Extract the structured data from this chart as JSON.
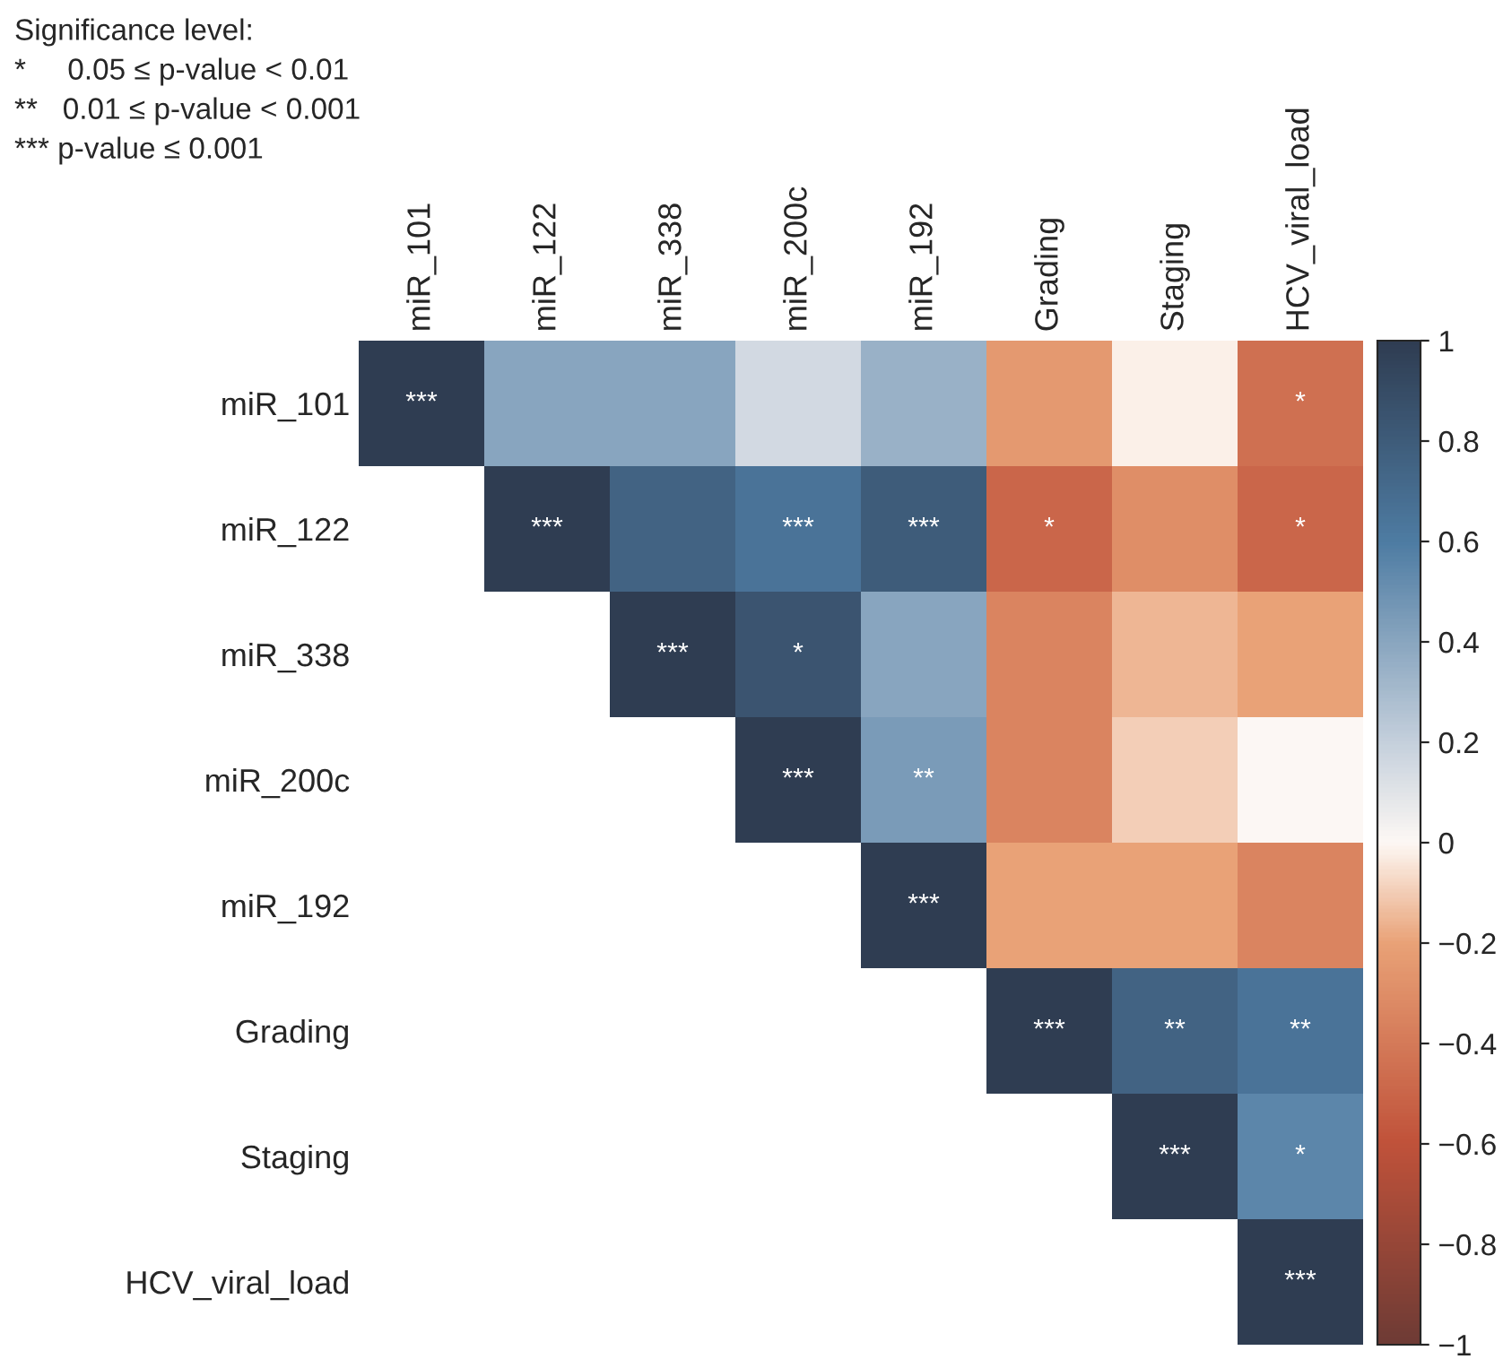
{
  "chart_data": {
    "type": "heatmap",
    "categories": [
      "miR_101",
      "miR_122",
      "miR_338",
      "miR_200c",
      "miR_192",
      "Grading",
      "Staging",
      "HCV_viral_load"
    ],
    "y_categories": [
      "miR_101",
      "miR_122",
      "miR_338",
      "miR_200c",
      "miR_192",
      "Grading",
      "Staging",
      "HCV_viral_load"
    ],
    "cells": [
      [
        1,
        0.4,
        0.4,
        0.15,
        0.35,
        -0.25,
        -0.02,
        -0.45
      ],
      [
        null,
        1,
        0.75,
        0.65,
        0.8,
        -0.5,
        -0.3,
        -0.5
      ],
      [
        null,
        null,
        1,
        0.85,
        0.4,
        -0.35,
        -0.15,
        -0.2
      ],
      [
        null,
        null,
        null,
        1,
        0.45,
        -0.35,
        -0.1,
        0.0
      ],
      [
        null,
        null,
        null,
        null,
        1,
        -0.2,
        -0.2,
        -0.35
      ],
      [
        null,
        null,
        null,
        null,
        null,
        1,
        0.75,
        0.65
      ],
      [
        null,
        null,
        null,
        null,
        null,
        null,
        1,
        0.55
      ],
      [
        null,
        null,
        null,
        null,
        null,
        null,
        null,
        1
      ]
    ],
    "cell_labels": [
      [
        "***",
        null,
        null,
        null,
        null,
        null,
        null,
        "*"
      ],
      [
        null,
        "***",
        null,
        "***",
        "***",
        "*",
        null,
        "*"
      ],
      [
        null,
        null,
        "***",
        "*",
        null,
        null,
        null,
        null
      ],
      [
        null,
        null,
        null,
        "***",
        "**",
        null,
        null,
        null
      ],
      [
        null,
        null,
        null,
        null,
        "***",
        null,
        null,
        null
      ],
      [
        null,
        null,
        null,
        null,
        null,
        "***",
        "**",
        "**"
      ],
      [
        null,
        null,
        null,
        null,
        null,
        null,
        "***",
        "*"
      ],
      [
        null,
        null,
        null,
        null,
        null,
        null,
        null,
        "***"
      ]
    ],
    "clim": [
      -1,
      1
    ],
    "cticks": [
      {
        "value": -1,
        "label": "−1"
      },
      {
        "value": -0.8,
        "label": "−0.8"
      },
      {
        "value": -0.6,
        "label": "−0.6"
      },
      {
        "value": -0.4,
        "label": "−0.4"
      },
      {
        "value": -0.2,
        "label": "−0.2"
      },
      0,
      0.2,
      0.4,
      0.6,
      0.8,
      1
    ],
    "annotations": [
      "Significance level:",
      "*     0.05 ≤ p-value < 0.01",
      "**   0.01 ≤ p-value < 0.001",
      "*** p-value ≤ 0.001"
    ]
  }
}
